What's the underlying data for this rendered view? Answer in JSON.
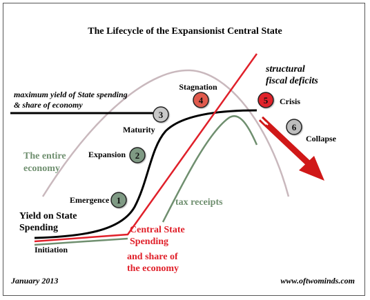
{
  "title": "The Lifecycle of the Expansionist Central State",
  "labels": {
    "max_yield_line1": "maximum yield of State spending",
    "max_yield_line2": "& share of economy",
    "structural_line1": "structural",
    "structural_line2": "fiscal deficits",
    "entire_economy_line1": "The entire",
    "entire_economy_line2": "economy",
    "yield_line1": "Yield on State",
    "yield_line2": "Spending",
    "tax_receipts": "tax receipts",
    "spending_line1": "Central State",
    "spending_line2": "Spending",
    "share_line1": "and share of",
    "share_line2": "the economy",
    "date": "January 2013",
    "website": "www.oftwominds.com"
  },
  "stages": [
    {
      "number": "1",
      "label": "Emergence",
      "color": "#7f9a84"
    },
    {
      "number": "2",
      "label": "Expansion",
      "color": "#7f9a84"
    },
    {
      "number": "3",
      "label": "Maturity",
      "color": "#c8c8c8"
    },
    {
      "number": "4",
      "label": "Stagnation",
      "color": "#e05a4e"
    },
    {
      "number": "5",
      "label": "Crisis",
      "color": "#e0202a"
    },
    {
      "number": "6",
      "label": "Collapse",
      "color": "#bdbdbd"
    }
  ],
  "start_label": "Initiation",
  "colors": {
    "yield_curve": "#000000",
    "economy_curve": "#c9b8bd",
    "spending_line": "#e0202a",
    "tax_curve": "#6f8f6f",
    "economy_label": "#6f8f6f",
    "tax_label": "#6f8f6f",
    "spending_label": "#e0202a",
    "arrow": "#d01818"
  }
}
